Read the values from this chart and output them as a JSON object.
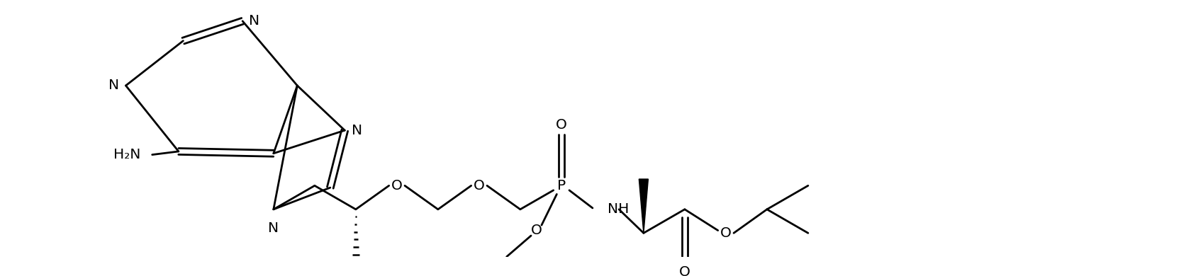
{
  "bg_color": "#ffffff",
  "line_color": "#000000",
  "lw": 2.0,
  "fs": 14.5,
  "figsize": [
    16.74,
    3.9
  ],
  "dpi": 100,
  "xlim": [
    0.0,
    16.74
  ],
  "ylim": [
    0.0,
    3.9
  ]
}
